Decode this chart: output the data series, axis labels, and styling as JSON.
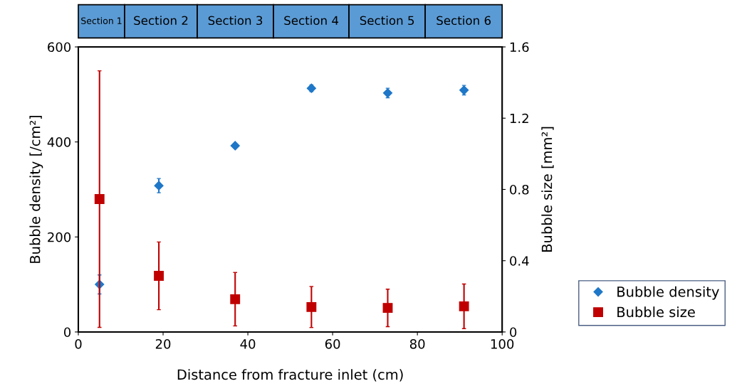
{
  "chart_data": {
    "type": "scatter",
    "xlabel": "Distance from fracture inlet (cm)",
    "ylabel": "Bubble density [/cm²]",
    "y2label": "Bubble size [mm²]",
    "annotations": [
      "Section 1",
      "Section 2",
      "Section 3",
      "Section 4",
      "Section 5",
      "Section 6"
    ],
    "x": [
      5,
      19,
      37,
      55,
      73,
      91
    ],
    "series": [
      {
        "name": "Bubble density",
        "color": "#1f77c8",
        "marker": "diamond",
        "values": [
          100,
          308,
          392,
          513,
          503,
          509
        ],
        "errors": [
          20,
          15,
          5,
          7,
          10,
          10
        ]
      },
      {
        "name": "Bubble size",
        "color": "#c00000",
        "marker": "square",
        "axis": "y2",
        "values": [
          0.746,
          0.315,
          0.184,
          0.14,
          0.135,
          0.144
        ],
        "errors": [
          0.72,
          0.19,
          0.15,
          0.115,
          0.105,
          0.125
        ]
      }
    ],
    "xlim": [
      0,
      100
    ],
    "xticks": [
      0,
      20,
      40,
      60,
      80,
      100
    ],
    "ylim": [
      0,
      600
    ],
    "yticks": [
      0,
      200,
      400,
      600
    ],
    "y2lim": [
      0,
      1.6
    ],
    "y2ticks": [
      0,
      0.4,
      0.8,
      1.2,
      1.6
    ],
    "grid": false,
    "legend": "bottom right"
  }
}
